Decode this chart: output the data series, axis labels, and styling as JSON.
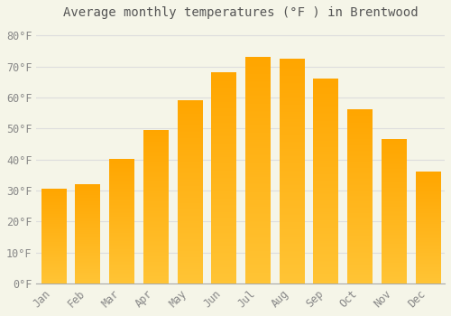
{
  "title": "Average monthly temperatures (°F ) in Brentwood",
  "months": [
    "Jan",
    "Feb",
    "Mar",
    "Apr",
    "May",
    "Jun",
    "Jul",
    "Aug",
    "Sep",
    "Oct",
    "Nov",
    "Dec"
  ],
  "values": [
    30.5,
    32,
    40,
    49.5,
    59,
    68,
    73,
    72.5,
    66,
    56,
    46.5,
    36
  ],
  "bar_color_main": "#FFA800",
  "bar_color_light": "#FFD060",
  "background_color": "#F5F5E8",
  "grid_color": "#DDDDDD",
  "yticks": [
    0,
    10,
    20,
    30,
    40,
    50,
    60,
    70,
    80
  ],
  "ylim": [
    0,
    83
  ],
  "title_fontsize": 10,
  "tick_fontsize": 8.5,
  "font_family": "monospace",
  "text_color": "#888888",
  "title_color": "#555555"
}
